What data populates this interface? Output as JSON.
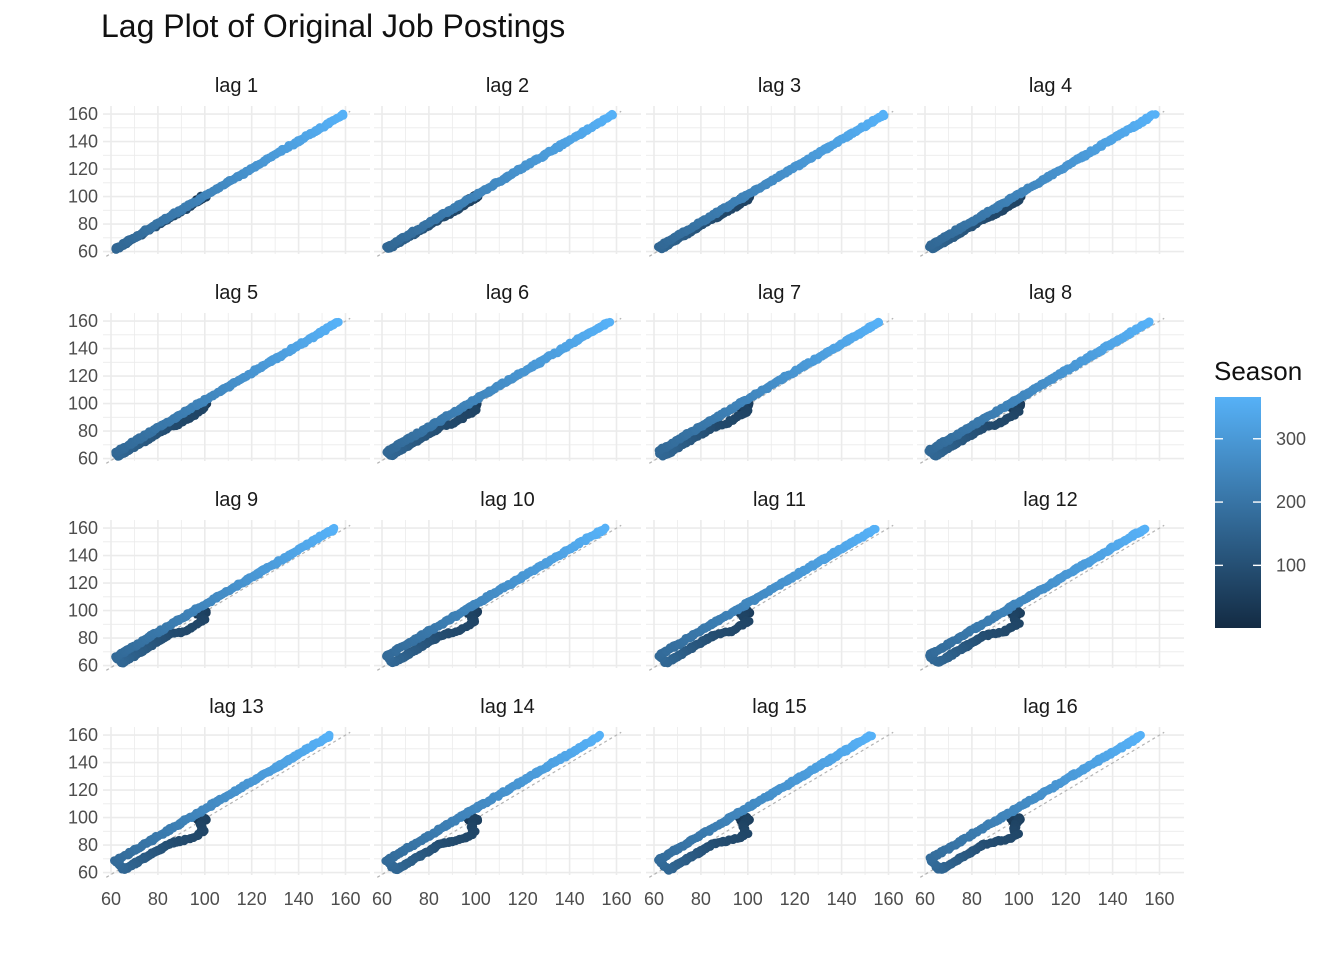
{
  "chart_data": {
    "type": "scatter",
    "title": "Lag Plot of Original Job Postings",
    "xlabel": "",
    "ylabel": "",
    "xlim": [
      60,
      162
    ],
    "ylim": [
      60,
      162
    ],
    "x_ticks": [
      "60",
      "80",
      "100",
      "120",
      "140",
      "160"
    ],
    "y_ticks": [
      "60",
      "80",
      "100",
      "120",
      "140",
      "160"
    ],
    "grid": true,
    "panels": [
      {
        "label": "lag 1",
        "lag": 1
      },
      {
        "label": "lag 2",
        "lag": 2
      },
      {
        "label": "lag 3",
        "lag": 3
      },
      {
        "label": "lag 4",
        "lag": 4
      },
      {
        "label": "lag 5",
        "lag": 5
      },
      {
        "label": "lag 6",
        "lag": 6
      },
      {
        "label": "lag 7",
        "lag": 7
      },
      {
        "label": "lag 8",
        "lag": 8
      },
      {
        "label": "lag 9",
        "lag": 9
      },
      {
        "label": "lag 10",
        "lag": 10
      },
      {
        "label": "lag 11",
        "lag": 11
      },
      {
        "label": "lag 12",
        "lag": 12
      },
      {
        "label": "lag 13",
        "lag": 13
      },
      {
        "label": "lag 14",
        "lag": 14
      },
      {
        "label": "lag 15",
        "lag": 15
      },
      {
        "label": "lag 16",
        "lag": 16
      }
    ],
    "legend": {
      "title": "Season",
      "position": "right",
      "ticks": [
        "100",
        "200",
        "300"
      ],
      "tick_values": [
        100,
        200,
        300
      ],
      "range": [
        1,
        366
      ],
      "colors": {
        "low": "#132B43",
        "high": "#56B1F7"
      }
    }
  }
}
